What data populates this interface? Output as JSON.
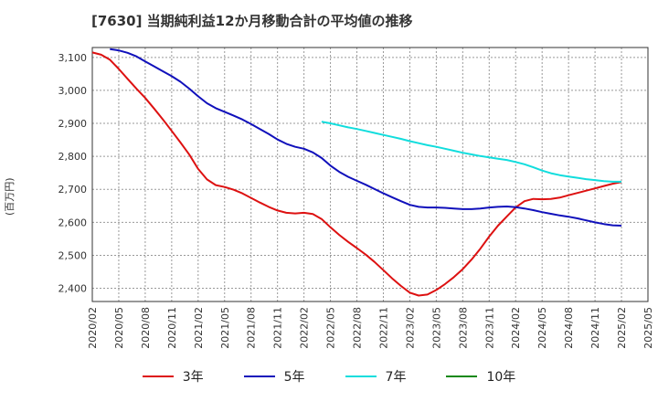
{
  "title": "[7630]  当期純利益12か月移動合計の平均値の推移",
  "ylabel": "(百万円)",
  "chart_data": {
    "type": "line",
    "title": "[7630]  当期純利益12か月移動合計の平均値の推移",
    "ylabel": "(百万円)",
    "xlabel": "",
    "ylim": [
      2360,
      3130
    ],
    "yticks": [
      2400,
      2500,
      2600,
      2700,
      2800,
      2900,
      3000,
      3100
    ],
    "ytick_labels": [
      "2,400",
      "2,500",
      "2,600",
      "2,700",
      "2,800",
      "2,900",
      "3,000",
      "3,100"
    ],
    "xticks": [
      "2020/02",
      "2020/05",
      "2020/08",
      "2020/11",
      "2021/02",
      "2021/05",
      "2021/08",
      "2021/11",
      "2022/02",
      "2022/05",
      "2022/08",
      "2022/11",
      "2023/02",
      "2023/05",
      "2023/08",
      "2023/11",
      "2024/02",
      "2024/05",
      "2024/08",
      "2024/11",
      "2025/02",
      "2025/05"
    ],
    "grid": true,
    "legend_position": "bottom",
    "series": [
      {
        "name": "3年",
        "color": "#dd1111",
        "points": [
          [
            "2020/02",
            3115
          ],
          [
            "2020/03",
            3108
          ],
          [
            "2020/04",
            3093
          ],
          [
            "2020/05",
            3065
          ],
          [
            "2020/06",
            3035
          ],
          [
            "2020/07",
            3005
          ],
          [
            "2020/08",
            2977
          ],
          [
            "2020/09",
            2945
          ],
          [
            "2020/10",
            2912
          ],
          [
            "2020/11",
            2877
          ],
          [
            "2020/12",
            2842
          ],
          [
            "2021/01",
            2805
          ],
          [
            "2021/02",
            2762
          ],
          [
            "2021/03",
            2730
          ],
          [
            "2021/04",
            2713
          ],
          [
            "2021/05",
            2707
          ],
          [
            "2021/06",
            2699
          ],
          [
            "2021/07",
            2688
          ],
          [
            "2021/08",
            2674
          ],
          [
            "2021/09",
            2660
          ],
          [
            "2021/10",
            2647
          ],
          [
            "2021/11",
            2636
          ],
          [
            "2021/12",
            2629
          ],
          [
            "2022/01",
            2627
          ],
          [
            "2022/02",
            2629
          ],
          [
            "2022/03",
            2625
          ],
          [
            "2022/04",
            2610
          ],
          [
            "2022/05",
            2585
          ],
          [
            "2022/06",
            2562
          ],
          [
            "2022/07",
            2541
          ],
          [
            "2022/08",
            2522
          ],
          [
            "2022/09",
            2502
          ],
          [
            "2022/10",
            2480
          ],
          [
            "2022/11",
            2455
          ],
          [
            "2022/12",
            2430
          ],
          [
            "2023/01",
            2407
          ],
          [
            "2023/02",
            2387
          ],
          [
            "2023/03",
            2378
          ],
          [
            "2023/04",
            2381
          ],
          [
            "2023/05",
            2395
          ],
          [
            "2023/06",
            2413
          ],
          [
            "2023/07",
            2434
          ],
          [
            "2023/08",
            2458
          ],
          [
            "2023/09",
            2487
          ],
          [
            "2023/10",
            2520
          ],
          [
            "2023/11",
            2557
          ],
          [
            "2023/12",
            2590
          ],
          [
            "2024/01",
            2618
          ],
          [
            "2024/02",
            2645
          ],
          [
            "2024/03",
            2664
          ],
          [
            "2024/04",
            2671
          ],
          [
            "2024/05",
            2670
          ],
          [
            "2024/06",
            2671
          ],
          [
            "2024/07",
            2675
          ],
          [
            "2024/08",
            2682
          ],
          [
            "2024/09",
            2689
          ],
          [
            "2024/10",
            2696
          ],
          [
            "2024/11",
            2703
          ],
          [
            "2024/12",
            2710
          ],
          [
            "2025/01",
            2717
          ],
          [
            "2025/02",
            2722
          ]
        ]
      },
      {
        "name": "5年",
        "color": "#1010bb",
        "points": [
          [
            "2020/04",
            3125
          ],
          [
            "2020/05",
            3121
          ],
          [
            "2020/06",
            3114
          ],
          [
            "2020/07",
            3103
          ],
          [
            "2020/08",
            3088
          ],
          [
            "2020/09",
            3073
          ],
          [
            "2020/10",
            3058
          ],
          [
            "2020/11",
            3043
          ],
          [
            "2020/12",
            3026
          ],
          [
            "2021/01",
            3005
          ],
          [
            "2021/02",
            2982
          ],
          [
            "2021/03",
            2961
          ],
          [
            "2021/04",
            2946
          ],
          [
            "2021/05",
            2935
          ],
          [
            "2021/06",
            2924
          ],
          [
            "2021/07",
            2912
          ],
          [
            "2021/08",
            2898
          ],
          [
            "2021/09",
            2883
          ],
          [
            "2021/10",
            2868
          ],
          [
            "2021/11",
            2851
          ],
          [
            "2021/12",
            2838
          ],
          [
            "2022/01",
            2829
          ],
          [
            "2022/02",
            2823
          ],
          [
            "2022/03",
            2812
          ],
          [
            "2022/04",
            2795
          ],
          [
            "2022/05",
            2772
          ],
          [
            "2022/06",
            2753
          ],
          [
            "2022/07",
            2738
          ],
          [
            "2022/08",
            2726
          ],
          [
            "2022/09",
            2714
          ],
          [
            "2022/10",
            2701
          ],
          [
            "2022/11",
            2688
          ],
          [
            "2022/12",
            2676
          ],
          [
            "2023/01",
            2664
          ],
          [
            "2023/02",
            2653
          ],
          [
            "2023/03",
            2647
          ],
          [
            "2023/04",
            2645
          ],
          [
            "2023/05",
            2645
          ],
          [
            "2023/06",
            2644
          ],
          [
            "2023/07",
            2642
          ],
          [
            "2023/08",
            2640
          ],
          [
            "2023/09",
            2640
          ],
          [
            "2023/10",
            2642
          ],
          [
            "2023/11",
            2645
          ],
          [
            "2023/12",
            2647
          ],
          [
            "2024/01",
            2648
          ],
          [
            "2024/02",
            2646
          ],
          [
            "2024/03",
            2642
          ],
          [
            "2024/04",
            2637
          ],
          [
            "2024/05",
            2631
          ],
          [
            "2024/06",
            2626
          ],
          [
            "2024/07",
            2621
          ],
          [
            "2024/08",
            2617
          ],
          [
            "2024/09",
            2612
          ],
          [
            "2024/10",
            2606
          ],
          [
            "2024/11",
            2600
          ],
          [
            "2024/12",
            2595
          ],
          [
            "2025/01",
            2591
          ],
          [
            "2025/02",
            2590
          ]
        ]
      },
      {
        "name": "7年",
        "color": "#11dddd",
        "points": [
          [
            "2022/04",
            2905
          ],
          [
            "2022/05",
            2900
          ],
          [
            "2022/06",
            2894
          ],
          [
            "2022/07",
            2888
          ],
          [
            "2022/08",
            2883
          ],
          [
            "2022/09",
            2877
          ],
          [
            "2022/10",
            2871
          ],
          [
            "2022/11",
            2865
          ],
          [
            "2022/12",
            2859
          ],
          [
            "2023/01",
            2853
          ],
          [
            "2023/02",
            2846
          ],
          [
            "2023/03",
            2840
          ],
          [
            "2023/04",
            2834
          ],
          [
            "2023/05",
            2829
          ],
          [
            "2023/06",
            2823
          ],
          [
            "2023/07",
            2817
          ],
          [
            "2023/08",
            2811
          ],
          [
            "2023/09",
            2806
          ],
          [
            "2023/10",
            2801
          ],
          [
            "2023/11",
            2797
          ],
          [
            "2023/12",
            2793
          ],
          [
            "2024/01",
            2789
          ],
          [
            "2024/02",
            2783
          ],
          [
            "2024/03",
            2776
          ],
          [
            "2024/04",
            2767
          ],
          [
            "2024/05",
            2757
          ],
          [
            "2024/06",
            2749
          ],
          [
            "2024/07",
            2743
          ],
          [
            "2024/08",
            2739
          ],
          [
            "2024/09",
            2735
          ],
          [
            "2024/10",
            2731
          ],
          [
            "2024/11",
            2728
          ],
          [
            "2024/12",
            2725
          ],
          [
            "2025/01",
            2723
          ],
          [
            "2025/02",
            2723
          ]
        ]
      },
      {
        "name": "10年",
        "color": "#118811",
        "points": []
      }
    ]
  }
}
